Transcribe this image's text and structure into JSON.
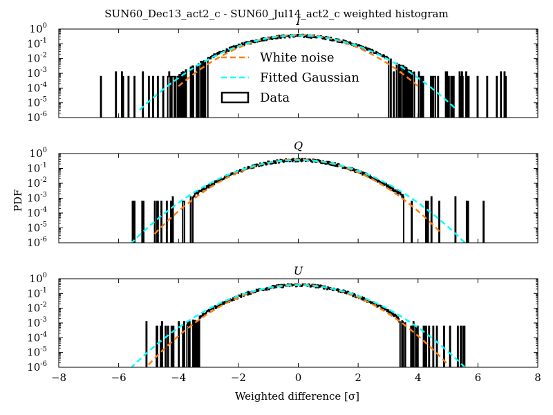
{
  "figure": {
    "suptitle": "SUN60_Dec13_act2_c - SUN60_Jul14_act2_c weighted histogram",
    "ylabel": "PDF",
    "xlabel": "Weighted difference [σ]"
  },
  "colors": {
    "white_noise": "#ff7f0e",
    "fitted_gaussian": "#00ffff",
    "data": "#000000"
  },
  "legend": {
    "placement": "upper center of first panel",
    "entries": [
      {
        "label": "White noise",
        "style": "dashed",
        "color": "#ff7f0e"
      },
      {
        "label": "Fitted Gaussian",
        "style": "dashed",
        "color": "#00ffff"
      },
      {
        "label": "Data",
        "style": "box",
        "color": "#000000"
      }
    ]
  },
  "chart_data": [
    {
      "type": "area",
      "title": "I",
      "xlim": [
        -8,
        8
      ],
      "ylim": [
        1e-06,
        1
      ],
      "yscale": "log",
      "xticks": [
        "−8",
        "−6",
        "−4",
        "−2",
        "0",
        "2",
        "4",
        "6",
        "8"
      ],
      "yticks": [
        {
          "base": "10",
          "exp": "0"
        },
        {
          "base": "10",
          "exp": "-1"
        },
        {
          "base": "10",
          "exp": "-2"
        },
        {
          "base": "10",
          "exp": "-3"
        },
        {
          "base": "10",
          "exp": "-4"
        },
        {
          "base": "10",
          "exp": "-5"
        },
        {
          "base": "10",
          "exp": "-6"
        }
      ],
      "series": [
        {
          "name": "White noise",
          "kind": "gaussian",
          "mu": 0,
          "sigma": 1.0,
          "x_range": [
            -4.0,
            4.0
          ]
        },
        {
          "name": "Fitted Gaussian",
          "kind": "gaussian",
          "mu": 0,
          "sigma": 1.1,
          "x_range": [
            -5.3,
            5.3
          ]
        },
        {
          "name": "Data",
          "kind": "histogram",
          "sigma": 1.13,
          "core_range": [
            -3.0,
            3.0
          ],
          "tail_range": [
            -7.0,
            7.0
          ],
          "floor": 0.0006,
          "tail_density": 0.45
        }
      ]
    },
    {
      "type": "area",
      "title": "Q",
      "xlim": [
        -8,
        8
      ],
      "ylim": [
        1e-06,
        1
      ],
      "yscale": "log",
      "xticks": [
        "−8",
        "−6",
        "−4",
        "−2",
        "0",
        "2",
        "4",
        "6",
        "8"
      ],
      "yticks": [
        {
          "base": "10",
          "exp": "0"
        },
        {
          "base": "10",
          "exp": "-1"
        },
        {
          "base": "10",
          "exp": "-2"
        },
        {
          "base": "10",
          "exp": "-3"
        },
        {
          "base": "10",
          "exp": "-4"
        },
        {
          "base": "10",
          "exp": "-5"
        },
        {
          "base": "10",
          "exp": "-6"
        }
      ],
      "series": [
        {
          "name": "White noise",
          "kind": "gaussian",
          "mu": 0,
          "sigma": 1.0,
          "x_range": [
            -4.8,
            4.8
          ]
        },
        {
          "name": "Fitted Gaussian",
          "kind": "gaussian",
          "mu": 0,
          "sigma": 1.1,
          "x_range": [
            -5.6,
            5.6
          ]
        },
        {
          "name": "Data",
          "kind": "histogram",
          "sigma": 1.05,
          "core_range": [
            -3.5,
            3.5
          ],
          "tail_range": [
            -5.6,
            6.2
          ],
          "floor": 0.0006,
          "tail_density": 0.3
        }
      ]
    },
    {
      "type": "area",
      "title": "U",
      "xlim": [
        -8,
        8
      ],
      "ylim": [
        1e-06,
        1
      ],
      "yscale": "log",
      "xticks": [
        "−8",
        "−6",
        "−4",
        "−2",
        "0",
        "2",
        "4",
        "6",
        "8"
      ],
      "yticks": [
        {
          "base": "10",
          "exp": "0"
        },
        {
          "base": "10",
          "exp": "-1"
        },
        {
          "base": "10",
          "exp": "-2"
        },
        {
          "base": "10",
          "exp": "-3"
        },
        {
          "base": "10",
          "exp": "-4"
        },
        {
          "base": "10",
          "exp": "-5"
        },
        {
          "base": "10",
          "exp": "-6"
        }
      ],
      "series": [
        {
          "name": "White noise",
          "kind": "gaussian",
          "mu": 0,
          "sigma": 1.0,
          "x_range": [
            -5.0,
            5.0
          ]
        },
        {
          "name": "Fitted Gaussian",
          "kind": "gaussian",
          "mu": 0,
          "sigma": 1.1,
          "x_range": [
            -5.6,
            5.6
          ]
        },
        {
          "name": "Data",
          "kind": "histogram",
          "sigma": 1.05,
          "core_range": [
            -3.3,
            3.3
          ],
          "tail_range": [
            -5.3,
            5.8
          ],
          "floor": 0.0006,
          "tail_density": 0.35
        }
      ]
    }
  ]
}
